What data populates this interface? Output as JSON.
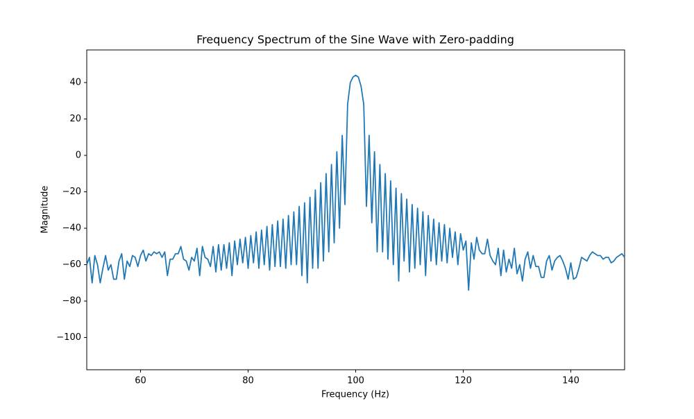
{
  "chart_data": {
    "type": "line",
    "title": "Frequency Spectrum of the Sine Wave with Zero-padding",
    "xlabel": "Frequency (Hz)",
    "ylabel": "Magnitude",
    "x": [
      50,
      50.5,
      51,
      51.5,
      52,
      52.5,
      53,
      53.5,
      54,
      54.5,
      55,
      55.5,
      56,
      56.5,
      57,
      57.5,
      58,
      58.5,
      59,
      59.5,
      60,
      60.5,
      61,
      61.5,
      62,
      62.5,
      63,
      63.5,
      64,
      64.5,
      65,
      65.5,
      66,
      66.5,
      67,
      67.5,
      68,
      68.5,
      69,
      69.5,
      70,
      70.5,
      71,
      71.5,
      72,
      72.5,
      73,
      73.5,
      74,
      74.5,
      75,
      75.5,
      76,
      76.5,
      77,
      77.5,
      78,
      78.5,
      79,
      79.5,
      80,
      80.5,
      81,
      81.5,
      82,
      82.5,
      83,
      83.5,
      84,
      84.5,
      85,
      85.5,
      86,
      86.5,
      87,
      87.5,
      88,
      88.5,
      89,
      89.5,
      90,
      90.5,
      91,
      91.5,
      92,
      92.5,
      93,
      93.5,
      94,
      94.5,
      95,
      95.5,
      96,
      96.5,
      97,
      97.5,
      98,
      98.5,
      99,
      99.5,
      100,
      100.5,
      101,
      101.5,
      102,
      102.5,
      103,
      103.5,
      104,
      104.5,
      105,
      105.5,
      106,
      106.5,
      107,
      107.5,
      108,
      108.5,
      109,
      109.5,
      110,
      110.5,
      111,
      111.5,
      112,
      112.5,
      113,
      113.5,
      114,
      114.5,
      115,
      115.5,
      116,
      116.5,
      117,
      117.5,
      118,
      118.5,
      119,
      119.5,
      120,
      120.5,
      121,
      121.5,
      122,
      122.5,
      123,
      123.5,
      124,
      124.5,
      125,
      125.5,
      126,
      126.5,
      127,
      127.5,
      128,
      128.5,
      129,
      129.5,
      130,
      130.5,
      131,
      131.5,
      132,
      132.5,
      133,
      133.5,
      134,
      134.5,
      135,
      135.5,
      136,
      136.5,
      137,
      137.5,
      138,
      138.5,
      139,
      139.5,
      140,
      140.5,
      141,
      141.5,
      142,
      142.5,
      143,
      143.5,
      144,
      144.5,
      145,
      145.5,
      146,
      146.5,
      147,
      147.5,
      148,
      148.5,
      149,
      149.5,
      150
    ],
    "series": [
      {
        "color": "#1f77b4",
        "values": [
          -60,
          -56,
          -70,
          -55,
          -60,
          -70,
          -62,
          -55,
          -63,
          -60,
          -68,
          -68,
          -58,
          -54,
          -68,
          -58,
          -61,
          -55,
          -56,
          -61,
          -55,
          -52,
          -58,
          -54,
          -55,
          -53,
          -54,
          -53,
          -56,
          -53,
          -66,
          -57,
          -57,
          -54,
          -54,
          -50,
          -57,
          -58,
          -63,
          -56,
          -58,
          -51,
          -66,
          -50,
          -56,
          -57,
          -61,
          -50,
          -64,
          -49,
          -63,
          -49,
          -62,
          -48,
          -66,
          -47,
          -60,
          -46,
          -59,
          -45,
          -62,
          -44,
          -59,
          -42,
          -62,
          -41,
          -60,
          -39,
          -63,
          -38,
          -61,
          -36,
          -61,
          -35,
          -62,
          -33,
          -60,
          -31,
          -60,
          -28,
          -66,
          -26,
          -70,
          -23,
          -62,
          -19,
          -62,
          -15,
          -58,
          -10,
          -53,
          -5,
          -48,
          2,
          -40,
          11,
          -27,
          28,
          40,
          43,
          44,
          43,
          38,
          28,
          -28,
          11,
          -37,
          2,
          -53,
          -5,
          -53,
          -10,
          -57,
          -14,
          -60,
          -18,
          -69,
          -21,
          -58,
          -24,
          -64,
          -27,
          -62,
          -29,
          -60,
          -31,
          -66,
          -33,
          -58,
          -35,
          -60,
          -37,
          -58,
          -38,
          -59,
          -40,
          -56,
          -42,
          -60,
          -43,
          -52,
          -47,
          -74,
          -48,
          -57,
          -45,
          -52,
          -54,
          -54,
          -46,
          -55,
          -58,
          -60,
          -51,
          -66,
          -52,
          -64,
          -57,
          -62,
          -51,
          -65,
          -60,
          -69,
          -57,
          -53,
          -62,
          -55,
          -61,
          -61,
          -67,
          -67,
          -58,
          -55,
          -63,
          -58,
          -56,
          -55,
          -58,
          -62,
          -68,
          -59,
          -68,
          -67,
          -62,
          -56,
          -57,
          -58,
          -55,
          -53,
          -54,
          -55,
          -55,
          -57,
          -56,
          -56,
          -59,
          -58,
          -56,
          -55,
          -54,
          -56
        ]
      }
    ],
    "xlim": [
      50,
      150
    ],
    "xticks": [
      60,
      80,
      100,
      120,
      140
    ],
    "ylim": [
      -117.7,
      57.9
    ],
    "yticks": [
      {
        "value": -100,
        "label": "−100"
      },
      {
        "value": -80,
        "label": "−80"
      },
      {
        "value": -60,
        "label": "−60"
      },
      {
        "value": -40,
        "label": "−40"
      },
      {
        "value": -20,
        "label": "−20"
      },
      0,
      20,
      40
    ],
    "grid": false
  }
}
